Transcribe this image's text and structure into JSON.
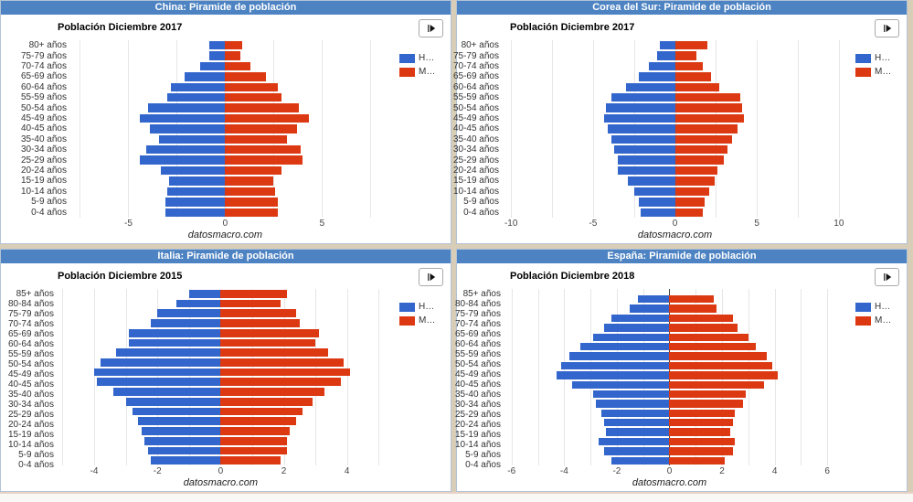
{
  "colors": {
    "header_bg": "#4d83c2",
    "header_text": "#ffffff",
    "hombres": "#3366cc",
    "mujeres": "#dc3912",
    "gridline": "#e6e6e6",
    "page_bg": "#d8cdb6"
  },
  "chart_data": [
    {
      "type": "bar",
      "orientation": "population-pyramid",
      "window_title": "China: Piramide de población",
      "subtitle": "Población Diciembre 2017",
      "watermark": "datosmacro.com",
      "play_button_icon": "play",
      "legend": [
        {
          "label": "H…",
          "color": "#3366cc"
        },
        {
          "label": "M…",
          "color": "#dc3912"
        }
      ],
      "categories": [
        "80+ años",
        "75-79 años",
        "70-74 años",
        "65-69 años",
        "60-64 años",
        "55-59 años",
        "50-54 años",
        "45-49 años",
        "40-45 años",
        "35-40 años",
        "30-34 años",
        "25-29 años",
        "20-24 años",
        "15-19 años",
        "10-14 años",
        "5-9 años",
        "0-4 años"
      ],
      "series": [
        {
          "name": "H…",
          "side": "left",
          "color": "#3366cc",
          "values": [
            0.8,
            0.8,
            1.3,
            2.1,
            2.8,
            3.0,
            4.0,
            4.4,
            3.9,
            3.4,
            4.1,
            4.4,
            3.3,
            2.9,
            3.0,
            3.1,
            3.1
          ]
        },
        {
          "name": "M…",
          "side": "right",
          "color": "#dc3912",
          "values": [
            0.9,
            0.8,
            1.3,
            2.1,
            2.7,
            2.9,
            3.8,
            4.3,
            3.7,
            3.2,
            3.9,
            4.0,
            2.9,
            2.5,
            2.6,
            2.7,
            2.7
          ]
        }
      ],
      "axis": {
        "xmin": -7.9,
        "xmax": 8.9,
        "grid_step": 2.5,
        "ticks": [
          {
            "value": -5,
            "label": "-5"
          },
          {
            "value": 0,
            "label": "0"
          },
          {
            "value": 5,
            "label": "5"
          }
        ]
      }
    },
    {
      "type": "bar",
      "orientation": "population-pyramid",
      "window_title": "Corea del Sur: Piramide de población",
      "subtitle": "Población Diciembre 2017",
      "watermark": "datosmacro.com",
      "play_button_icon": "play",
      "legend": [
        {
          "label": "H…",
          "color": "#3366cc"
        },
        {
          "label": "M…",
          "color": "#dc3912"
        }
      ],
      "categories": [
        "80+ años",
        "75-79 años",
        "70-74 años",
        "65-69 años",
        "60-64 años",
        "55-59 años",
        "50-54 años",
        "45-49 años",
        "40-45 años",
        "35-40 años",
        "30-34 años",
        "25-29 años",
        "20-24 años",
        "15-19 años",
        "10-14 años",
        "5-9 años",
        "0-4 años"
      ],
      "series": [
        {
          "name": "H…",
          "side": "left",
          "color": "#3366cc",
          "values": [
            0.9,
            1.1,
            1.6,
            2.2,
            3.0,
            3.9,
            4.2,
            4.3,
            4.1,
            3.9,
            3.7,
            3.5,
            3.5,
            2.9,
            2.5,
            2.2,
            2.1
          ]
        },
        {
          "name": "M…",
          "side": "right",
          "color": "#dc3912",
          "values": [
            2.0,
            1.3,
            1.7,
            2.2,
            2.7,
            4.0,
            4.1,
            4.2,
            3.8,
            3.5,
            3.2,
            3.0,
            2.6,
            2.4,
            2.1,
            1.8,
            1.7
          ]
        }
      ],
      "axis": {
        "xmin": -10.4,
        "xmax": 10.9,
        "grid_step": 2.5,
        "ticks": [
          {
            "value": -10,
            "label": "-10"
          },
          {
            "value": -5,
            "label": "-5"
          },
          {
            "value": 0,
            "label": "0"
          },
          {
            "value": 5,
            "label": "5"
          },
          {
            "value": 10,
            "label": "10"
          }
        ]
      }
    },
    {
      "type": "bar",
      "orientation": "population-pyramid",
      "window_title": "Italia: Piramide de población",
      "subtitle": "Población Diciembre 2015",
      "watermark": "datosmacro.com",
      "play_button_icon": "play",
      "legend": [
        {
          "label": "H…",
          "color": "#3366cc"
        },
        {
          "label": "M…",
          "color": "#dc3912"
        }
      ],
      "categories": [
        "85+ años",
        "80-84 años",
        "75-79 años",
        "70-74 años",
        "65-69 años",
        "60-64 años",
        "55-59 años",
        "50-54 años",
        "45-49 años",
        "40-45 años",
        "35-40 años",
        "30-34 años",
        "25-29 años",
        "20-24 años",
        "15-19 años",
        "10-14 años",
        "5-9 años",
        "0-4 años"
      ],
      "series": [
        {
          "name": "H…",
          "side": "left",
          "color": "#3366cc",
          "values": [
            1.0,
            1.4,
            2.0,
            2.2,
            2.9,
            2.9,
            3.3,
            3.8,
            4.0,
            3.9,
            3.4,
            3.0,
            2.8,
            2.6,
            2.5,
            2.4,
            2.3,
            2.2
          ]
        },
        {
          "name": "M…",
          "side": "right",
          "color": "#dc3912",
          "values": [
            2.1,
            1.9,
            2.4,
            2.5,
            3.1,
            3.0,
            3.4,
            3.9,
            4.1,
            3.8,
            3.3,
            2.9,
            2.6,
            2.4,
            2.2,
            2.1,
            2.1,
            1.9
          ]
        }
      ],
      "axis": {
        "xmin": -5.1,
        "xmax": 5.6,
        "grid_step": 1,
        "ticks": [
          {
            "value": -4,
            "label": "-4"
          },
          {
            "value": -2,
            "label": "-2"
          },
          {
            "value": 0,
            "label": "0"
          },
          {
            "value": 2,
            "label": "2"
          },
          {
            "value": 4,
            "label": "4"
          }
        ]
      }
    },
    {
      "type": "bar",
      "orientation": "population-pyramid",
      "window_title": "España: Piramide de población",
      "subtitle": "Población Diciembre 2018",
      "watermark": "datosmacro.com",
      "play_button_icon": "play",
      "legend": [
        {
          "label": "H…",
          "color": "#3366cc"
        },
        {
          "label": "M…",
          "color": "#dc3912"
        }
      ],
      "categories": [
        "85+ años",
        "80-84 años",
        "75-79 años",
        "70-74 años",
        "65-69 años",
        "60-64 años",
        "55-59 años",
        "50-54 años",
        "45-49 años",
        "40-45 años",
        "35-40 años",
        "30-34 años",
        "25-29 años",
        "20-24 años",
        "15-19 años",
        "10-14 años",
        "5-9 años",
        "0-4 años"
      ],
      "series": [
        {
          "name": "H…",
          "side": "left",
          "color": "#3366cc",
          "values": [
            1.2,
            1.5,
            2.2,
            2.5,
            2.9,
            3.4,
            3.8,
            4.1,
            4.3,
            3.7,
            2.9,
            2.8,
            2.6,
            2.5,
            2.4,
            2.7,
            2.5,
            2.2
          ]
        },
        {
          "name": "M…",
          "side": "right",
          "color": "#dc3912",
          "values": [
            1.7,
            1.8,
            2.4,
            2.6,
            3.0,
            3.3,
            3.7,
            3.9,
            4.1,
            3.6,
            2.9,
            2.8,
            2.5,
            2.4,
            2.3,
            2.5,
            2.4,
            2.1
          ]
        }
      ],
      "axis": {
        "xmin": -6.2,
        "xmax": 7.0,
        "grid_step": 1,
        "zero_line": true,
        "top_padding": 6,
        "ticks": [
          {
            "value": -6,
            "label": "-6"
          },
          {
            "value": -4,
            "label": "-4"
          },
          {
            "value": -2,
            "label": "-2"
          },
          {
            "value": 0,
            "label": "0"
          },
          {
            "value": 2,
            "label": "2"
          },
          {
            "value": 4,
            "label": "4"
          },
          {
            "value": 6,
            "label": "6"
          }
        ]
      }
    }
  ]
}
